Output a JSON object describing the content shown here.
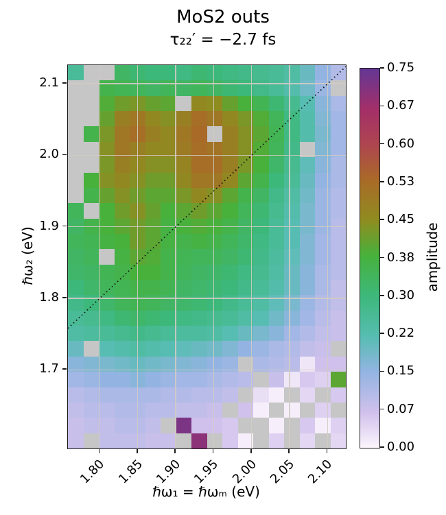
{
  "chart_data": {
    "type": "heatmap",
    "title": "MoS2 outs",
    "subtitle": "τ₂₂′ = −2.7 fs",
    "xlabel": "ℏω₁ = ℏωₘ (eV)",
    "ylabel": "ℏω₂ (eV)",
    "colorbar_label": "amplitude",
    "vmin": 0.0,
    "vmax": 0.75,
    "x_range": [
      1.758,
      2.124
    ],
    "y_range": [
      1.59,
      2.126
    ],
    "x_ticks": [
      1.8,
      1.85,
      1.9,
      1.95,
      2.0,
      2.05,
      2.1
    ],
    "y_ticks": [
      2.1,
      2.0,
      1.9,
      1.8,
      1.7
    ],
    "colorbar_tick_labels": [
      "0.75",
      "0.67",
      "0.60",
      "0.53",
      "0.45",
      "0.38",
      "0.30",
      "0.22",
      "0.15",
      "0.07",
      "0.00"
    ],
    "grid_on": true,
    "legend_position": "colorbar-right",
    "diagonal_line": "dotted black y = x from lower-left to upper-right corner",
    "nan_color": "#c6c6c6",
    "colormap_stops": [
      [
        0.0,
        "#fcf5fc"
      ],
      [
        0.07,
        "#d0c1ec"
      ],
      [
        0.15,
        "#93b4e2"
      ],
      [
        0.22,
        "#57bdb2"
      ],
      [
        0.3,
        "#3db87b"
      ],
      [
        0.38,
        "#47b13c"
      ],
      [
        0.45,
        "#8f8c20"
      ],
      [
        0.53,
        "#a96a28"
      ],
      [
        0.6,
        "#ae4550"
      ],
      [
        0.67,
        "#a32f68"
      ],
      [
        0.75,
        "#643795"
      ]
    ],
    "x_centers": [
      1.768,
      1.788,
      1.809,
      1.829,
      1.849,
      1.87,
      1.89,
      1.91,
      1.931,
      1.951,
      1.971,
      1.992,
      2.012,
      2.032,
      2.053,
      2.073,
      2.093,
      2.114
    ],
    "y_centers": [
      2.115,
      2.094,
      2.072,
      2.051,
      2.029,
      2.008,
      1.987,
      1.965,
      1.944,
      1.922,
      1.901,
      1.88,
      1.858,
      1.837,
      1.815,
      1.794,
      1.772,
      1.751,
      1.73,
      1.708,
      1.687,
      1.665,
      1.644,
      1.622,
      1.601
    ],
    "values": [
      [
        0.26,
        null,
        null,
        0.33,
        0.31,
        0.3,
        0.3,
        0.29,
        0.31,
        0.3,
        0.29,
        0.28,
        0.27,
        0.26,
        0.24,
        0.2,
        0.15,
        0.11
      ],
      [
        null,
        null,
        0.36,
        0.35,
        0.34,
        0.33,
        0.34,
        0.33,
        0.34,
        0.33,
        0.31,
        0.3,
        0.28,
        0.26,
        0.23,
        0.19,
        0.14,
        null
      ],
      [
        null,
        null,
        0.39,
        0.42,
        0.43,
        0.41,
        0.4,
        null,
        0.46,
        0.45,
        0.41,
        0.38,
        0.35,
        0.31,
        0.27,
        0.22,
        0.16,
        0.12
      ],
      [
        null,
        null,
        0.41,
        0.48,
        0.5,
        0.46,
        0.44,
        0.48,
        0.52,
        0.5,
        0.46,
        0.43,
        0.39,
        0.34,
        0.29,
        0.23,
        0.17,
        0.13
      ],
      [
        null,
        0.36,
        0.43,
        0.5,
        0.52,
        0.48,
        0.46,
        0.5,
        0.53,
        null,
        0.48,
        0.44,
        0.4,
        0.35,
        0.29,
        0.23,
        0.18,
        0.13
      ],
      [
        null,
        null,
        0.44,
        0.5,
        0.48,
        0.46,
        0.46,
        0.49,
        0.52,
        0.51,
        0.48,
        0.44,
        0.39,
        0.34,
        0.28,
        null,
        0.17,
        0.13
      ],
      [
        null,
        null,
        0.43,
        0.48,
        0.46,
        0.44,
        0.44,
        0.47,
        0.52,
        0.52,
        0.48,
        0.43,
        0.38,
        0.32,
        0.27,
        0.21,
        0.16,
        0.12
      ],
      [
        null,
        0.38,
        0.44,
        0.46,
        0.44,
        0.42,
        0.42,
        0.46,
        0.5,
        0.5,
        0.46,
        0.4,
        0.36,
        0.3,
        0.26,
        0.2,
        0.15,
        0.12
      ],
      [
        null,
        0.36,
        0.41,
        0.44,
        0.42,
        0.4,
        0.4,
        0.43,
        0.46,
        0.44,
        0.4,
        0.36,
        0.33,
        0.28,
        0.24,
        0.19,
        0.14,
        0.11
      ],
      [
        0.34,
        null,
        0.38,
        0.42,
        0.44,
        0.41,
        0.38,
        0.4,
        0.42,
        0.4,
        0.38,
        0.34,
        0.31,
        0.27,
        0.23,
        0.18,
        0.14,
        0.11
      ],
      [
        0.33,
        0.36,
        0.38,
        0.4,
        0.42,
        0.4,
        0.37,
        0.38,
        0.39,
        0.38,
        0.36,
        0.33,
        0.3,
        0.26,
        0.22,
        0.18,
        0.14,
        0.1
      ],
      [
        0.34,
        0.35,
        0.37,
        0.38,
        0.42,
        0.4,
        0.37,
        0.36,
        0.37,
        0.36,
        0.34,
        0.32,
        0.29,
        0.26,
        0.22,
        0.17,
        0.13,
        0.1
      ],
      [
        0.33,
        0.34,
        null,
        0.37,
        0.4,
        0.39,
        0.36,
        0.35,
        0.34,
        0.34,
        0.33,
        0.31,
        0.28,
        0.25,
        0.21,
        0.17,
        0.13,
        0.1
      ],
      [
        0.32,
        0.33,
        0.35,
        0.36,
        0.38,
        0.38,
        0.36,
        0.34,
        0.33,
        0.32,
        0.31,
        0.29,
        0.27,
        0.24,
        0.2,
        0.16,
        0.12,
        0.1
      ],
      [
        0.3,
        0.32,
        0.34,
        0.35,
        0.36,
        0.36,
        0.35,
        0.33,
        0.32,
        0.31,
        0.3,
        0.28,
        0.26,
        0.23,
        0.2,
        0.16,
        0.12,
        0.09
      ],
      [
        0.28,
        0.3,
        0.32,
        0.34,
        0.35,
        0.34,
        0.33,
        0.32,
        0.31,
        0.3,
        0.28,
        0.26,
        0.24,
        0.21,
        0.18,
        0.14,
        0.11,
        0.09
      ],
      [
        0.26,
        0.27,
        0.29,
        0.31,
        0.32,
        0.31,
        0.3,
        0.29,
        0.28,
        0.27,
        0.26,
        0.24,
        0.22,
        0.19,
        0.16,
        0.13,
        0.1,
        0.08
      ],
      [
        0.24,
        0.25,
        0.26,
        0.27,
        0.28,
        0.27,
        0.26,
        0.25,
        0.25,
        0.24,
        0.22,
        0.2,
        0.18,
        0.16,
        0.13,
        0.11,
        0.09,
        0.08
      ],
      [
        0.2,
        null,
        0.22,
        0.23,
        0.24,
        0.23,
        0.22,
        0.21,
        0.2,
        0.19,
        0.17,
        0.15,
        0.14,
        0.12,
        0.11,
        0.09,
        0.08,
        null
      ],
      [
        0.16,
        0.17,
        0.18,
        0.19,
        0.2,
        0.19,
        0.18,
        0.17,
        0.16,
        0.15,
        0.14,
        null,
        0.12,
        0.11,
        0.1,
        0.02,
        0.07,
        0.07
      ],
      [
        0.13,
        0.14,
        0.15,
        0.15,
        0.16,
        0.15,
        0.14,
        0.13,
        0.13,
        0.12,
        0.11,
        0.1,
        null,
        0.08,
        0.02,
        0.06,
        0.05,
        0.4
      ],
      [
        0.1,
        0.11,
        0.12,
        0.12,
        0.12,
        0.12,
        0.11,
        0.11,
        0.1,
        0.1,
        0.09,
        null,
        0.03,
        0.01,
        null,
        0.04,
        null,
        0.06
      ],
      [
        0.09,
        0.1,
        0.1,
        0.11,
        0.11,
        0.1,
        0.1,
        0.09,
        0.09,
        0.08,
        null,
        0.07,
        0.01,
        null,
        0.01,
        null,
        0.05,
        null
      ],
      [
        0.08,
        0.09,
        0.09,
        0.1,
        0.1,
        0.09,
        null,
        0.72,
        0.07,
        0.07,
        0.06,
        null,
        null,
        0.01,
        null,
        0.06,
        0.01,
        0.05
      ],
      [
        0.08,
        null,
        0.09,
        0.09,
        0.09,
        0.08,
        0.08,
        null,
        0.7,
        null,
        0.06,
        0.01,
        null,
        0.05,
        null,
        0.04,
        null,
        0.04
      ]
    ]
  }
}
